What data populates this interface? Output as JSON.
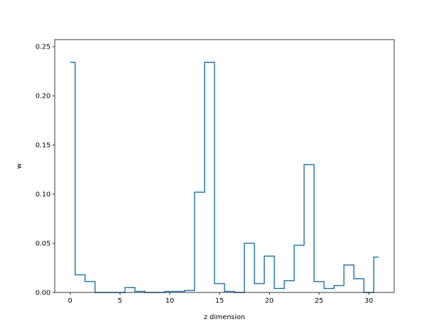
{
  "chart_data": {
    "type": "line",
    "drawstyle": "steps-mid",
    "title": "",
    "xlabel": "z dimension",
    "ylabel": "w",
    "xlim": [
      -1.55,
      32.55
    ],
    "ylim": [
      0,
      0.2571
    ],
    "x_ticks": [
      0,
      5,
      10,
      15,
      20,
      25,
      30
    ],
    "y_ticks": [
      0.0,
      0.05,
      0.1,
      0.15,
      0.2,
      0.25
    ],
    "x_tick_labels": [
      "0",
      "5",
      "10",
      "15",
      "20",
      "25",
      "30"
    ],
    "y_tick_labels": [
      "0.00",
      "0.05",
      "0.10",
      "0.15",
      "0.20",
      "0.25"
    ],
    "grid": false,
    "series": [
      {
        "color": "#1f77b4",
        "x": [
          0,
          1,
          2,
          3,
          4,
          5,
          6,
          7,
          8,
          9,
          10,
          11,
          12,
          13,
          14,
          15,
          16,
          17,
          18,
          19,
          20,
          21,
          22,
          23,
          24,
          25,
          26,
          27,
          28,
          29,
          30,
          31
        ],
        "y": [
          0.234,
          0.018,
          0.011,
          0.0,
          0.0,
          0.0,
          0.005,
          0.001,
          0.0,
          0.0,
          0.001,
          0.001,
          0.002,
          0.102,
          0.234,
          0.009,
          0.001,
          0.0,
          0.05,
          0.009,
          0.037,
          0.004,
          0.012,
          0.048,
          0.13,
          0.011,
          0.004,
          0.007,
          0.028,
          0.014,
          0.0,
          0.036
        ]
      }
    ]
  }
}
